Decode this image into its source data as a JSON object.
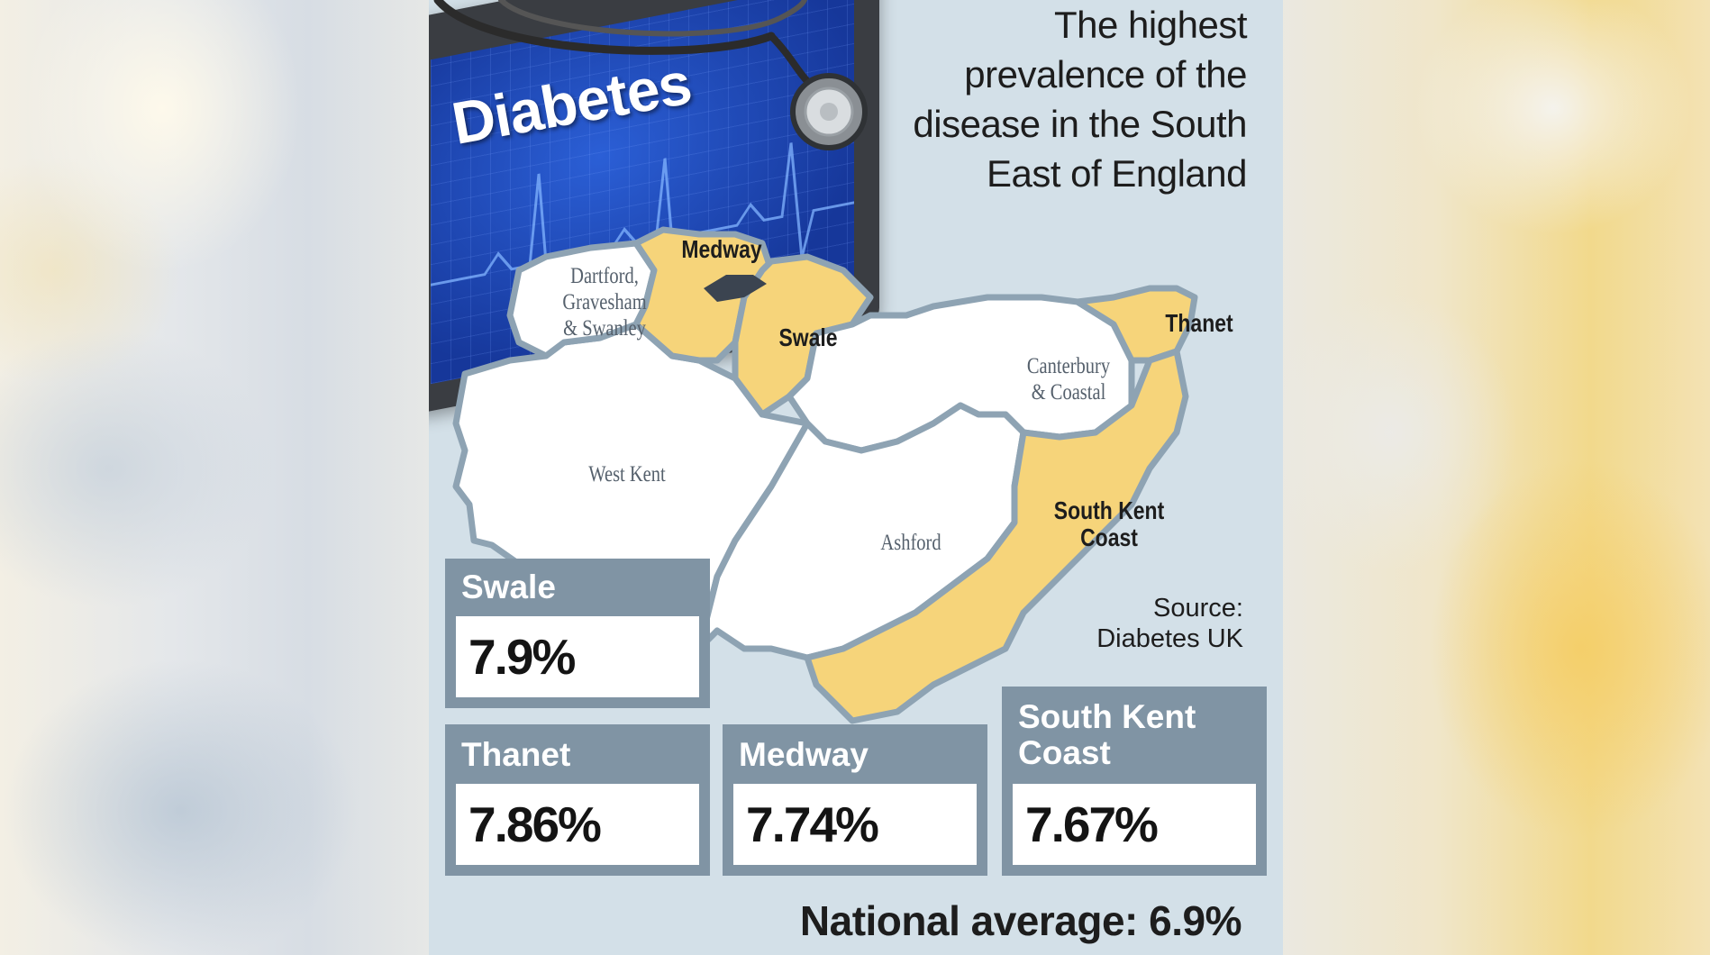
{
  "infographic": {
    "badge_title": "Diabetes",
    "headline": "The highest prevalence of the disease in the South East of England",
    "source": "Source: Diabetes UK",
    "national_average": "National average: 6.9%"
  },
  "map": {
    "highlight_color": "#f6d47a",
    "regions": [
      {
        "name": "Medway",
        "highlighted": true
      },
      {
        "name": "Dartford, Gravesham & Swanley",
        "highlighted": false
      },
      {
        "name": "Swale",
        "highlighted": true
      },
      {
        "name": "Thanet",
        "highlighted": true
      },
      {
        "name": "Canterbury & Coastal",
        "highlighted": false
      },
      {
        "name": "West Kent",
        "highlighted": false
      },
      {
        "name": "Ashford",
        "highlighted": false
      },
      {
        "name": "South Kent Coast",
        "highlighted": true
      }
    ],
    "labels": {
      "medway": "Medway",
      "dartford_line1": "Dartford,",
      "dartford_line2": "Gravesham",
      "dartford_line3": "& Swanley",
      "swale": "Swale",
      "thanet": "Thanet",
      "canterbury_line1": "Canterbury",
      "canterbury_line2": "& Coastal",
      "west_kent": "West Kent",
      "ashford": "Ashford",
      "skc_line1": "South Kent",
      "skc_line2": "Coast"
    }
  },
  "stats": [
    {
      "name": "Swale",
      "value": "7.9%"
    },
    {
      "name": "Thanet",
      "value": "7.86%"
    },
    {
      "name": "Medway",
      "value": "7.74%"
    },
    {
      "name_line1": "South Kent",
      "name_line2": "Coast",
      "value": "7.67%"
    }
  ]
}
